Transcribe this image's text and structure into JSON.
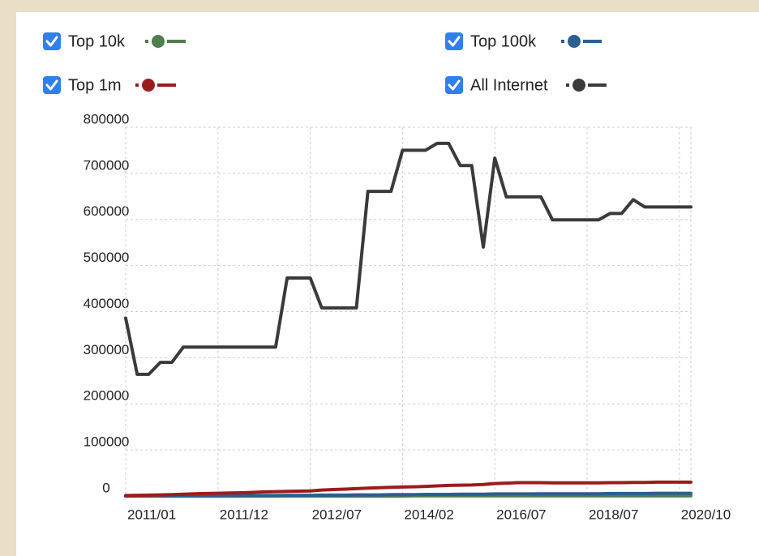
{
  "chart_data": {
    "type": "line",
    "categories": [
      "2011/01",
      null,
      null,
      null,
      null,
      null,
      null,
      null,
      "2011/12",
      null,
      null,
      null,
      null,
      null,
      null,
      null,
      "2012/07",
      null,
      null,
      null,
      null,
      null,
      null,
      null,
      "2014/02",
      null,
      null,
      null,
      null,
      null,
      null,
      null,
      "2016/07",
      null,
      null,
      null,
      null,
      null,
      null,
      null,
      "2018/07",
      null,
      null,
      null,
      null,
      null,
      null,
      null,
      "2020/10",
      null
    ],
    "series": [
      {
        "name": "Top 10k",
        "color": "#4e7d4e",
        "values": [
          0,
          0,
          0,
          0,
          0,
          0,
          0,
          0,
          0,
          0,
          0,
          0,
          0,
          0,
          0,
          0,
          0,
          0,
          0,
          0,
          0,
          0,
          0,
          0,
          0,
          500,
          500,
          500,
          500,
          500,
          500,
          500,
          500,
          500,
          500,
          500,
          500,
          500,
          500,
          500,
          500,
          500,
          500,
          500,
          500,
          500,
          500,
          500,
          500,
          500
        ]
      },
      {
        "name": "Top 100k",
        "color": "#2a5f8f",
        "values": [
          0,
          0,
          0,
          0,
          0,
          500,
          500,
          500,
          500,
          500,
          1000,
          1000,
          1000,
          1000,
          1500,
          1500,
          1500,
          2000,
          2000,
          2000,
          2500,
          2500,
          2500,
          3000,
          3000,
          3000,
          3500,
          3500,
          3500,
          4000,
          4000,
          4000,
          4500,
          4500,
          4500,
          4500,
          5000,
          5000,
          5000,
          5000,
          5000,
          5000,
          5500,
          5500,
          5500,
          5500,
          6000,
          6000,
          6000,
          6000
        ]
      },
      {
        "name": "Top 1m",
        "color": "#9b1c1c",
        "values": [
          1000,
          1500,
          2000,
          2500,
          3000,
          4000,
          5000,
          5500,
          6000,
          6500,
          7000,
          8000,
          9000,
          9500,
          10000,
          10500,
          11000,
          13000,
          14000,
          15000,
          16000,
          17000,
          18000,
          19000,
          19500,
          20000,
          21000,
          22000,
          23000,
          23500,
          24000,
          25000,
          27000,
          28000,
          29000,
          29000,
          29000,
          28500,
          28500,
          28500,
          28500,
          28500,
          29000,
          29000,
          29500,
          29500,
          30000,
          30000,
          30000,
          30000
        ]
      },
      {
        "name": "All Internet",
        "color": "#3a3a3a",
        "values": [
          386000,
          264000,
          264000,
          290000,
          290000,
          323000,
          323000,
          323000,
          323000,
          323000,
          323000,
          323000,
          323000,
          323000,
          473000,
          473000,
          473000,
          408000,
          408000,
          408000,
          408000,
          661000,
          661000,
          661000,
          750000,
          750000,
          750000,
          765000,
          765000,
          717000,
          717000,
          540000,
          733000,
          649000,
          649000,
          649000,
          649000,
          599000,
          599000,
          599000,
          599000,
          599000,
          613000,
          613000,
          643000,
          627000,
          627000,
          627000,
          627000,
          627000
        ]
      }
    ],
    "ylim": [
      0,
      800000
    ],
    "yticks": [
      0,
      100000,
      200000,
      300000,
      400000,
      500000,
      600000,
      700000,
      800000
    ],
    "grid": true
  }
}
